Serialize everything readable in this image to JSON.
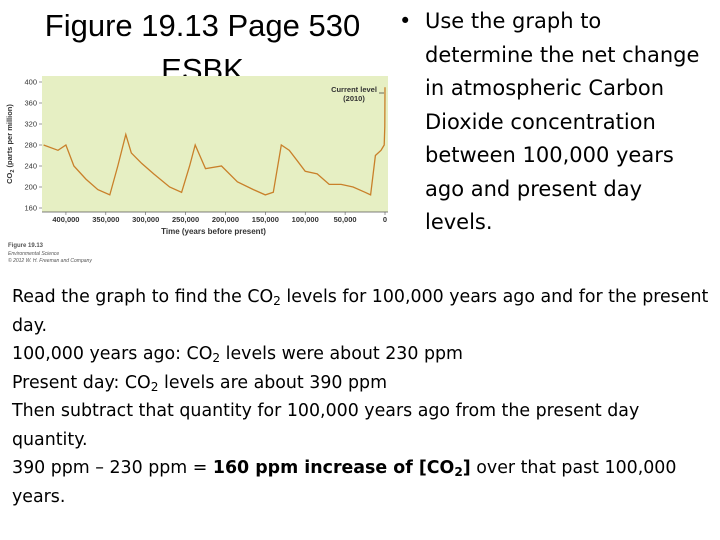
{
  "title": [
    "Figure 19.13 Page 530",
    "ESBK"
  ],
  "bullet": "Use the graph to determine the net change in atmospheric Carbon Dioxide concentration between 100,000 years ago and present day levels.",
  "chart_data": {
    "type": "line",
    "ylabel": [
      "CO",
      "2",
      " (parts per million)"
    ],
    "xlabel": "Time (years before present)",
    "annotation": [
      "Current level",
      "(2010)"
    ],
    "caption": [
      "Figure 19.13",
      "Environmental Science",
      "© 2012 W. H. Freeman and Company"
    ],
    "x": [
      428000,
      410000,
      400000,
      390000,
      375000,
      360000,
      345000,
      335000,
      325000,
      318000,
      305000,
      290000,
      270000,
      255000,
      245000,
      238000,
      225000,
      205000,
      185000,
      165000,
      150000,
      140000,
      130000,
      120000,
      110000,
      100000,
      85000,
      70000,
      55000,
      40000,
      25000,
      18000,
      12000,
      5000,
      1000,
      200,
      0
    ],
    "values": [
      280,
      270,
      280,
      240,
      215,
      195,
      185,
      240,
      300,
      265,
      245,
      225,
      200,
      190,
      240,
      280,
      235,
      240,
      210,
      195,
      185,
      190,
      280,
      270,
      250,
      230,
      225,
      205,
      205,
      200,
      190,
      185,
      260,
      270,
      280,
      315,
      390
    ],
    "color": "#c9802a",
    "background": "#e6efc3",
    "xlim": [
      430000,
      0
    ],
    "ylim": [
      160,
      400
    ],
    "xticks": [
      {
        "value": 400000,
        "label": "400,000"
      },
      {
        "value": 350000,
        "label": "350,000"
      },
      {
        "value": 300000,
        "label": "300,000"
      },
      {
        "value": 250000,
        "label": "250,000"
      },
      {
        "value": 200000,
        "label": "200,000"
      },
      {
        "value": 150000,
        "label": "150,000"
      },
      {
        "value": 100000,
        "label": "100,000"
      },
      {
        "value": 50000,
        "label": "50,000"
      },
      0
    ],
    "yticks": [
      160,
      200,
      240,
      280,
      320,
      360,
      400
    ]
  },
  "body": {
    "intro": [
      "Read the graph to find the CO",
      "2",
      " levels for 100,000 years ago and for the present day."
    ],
    "past": [
      "100,000 years ago: CO",
      "2",
      " levels were about 230 ppm"
    ],
    "present": [
      "Present day: CO",
      "2",
      " levels are about 390 ppm"
    ],
    "step": "Then subtract that quantity for 100,000 years ago from the present day quantity.",
    "result": [
      "390 ppm – 230 ppm = ",
      "160 ppm increase of [CO",
      "2",
      "]",
      " over that past 100,000 years."
    ]
  }
}
